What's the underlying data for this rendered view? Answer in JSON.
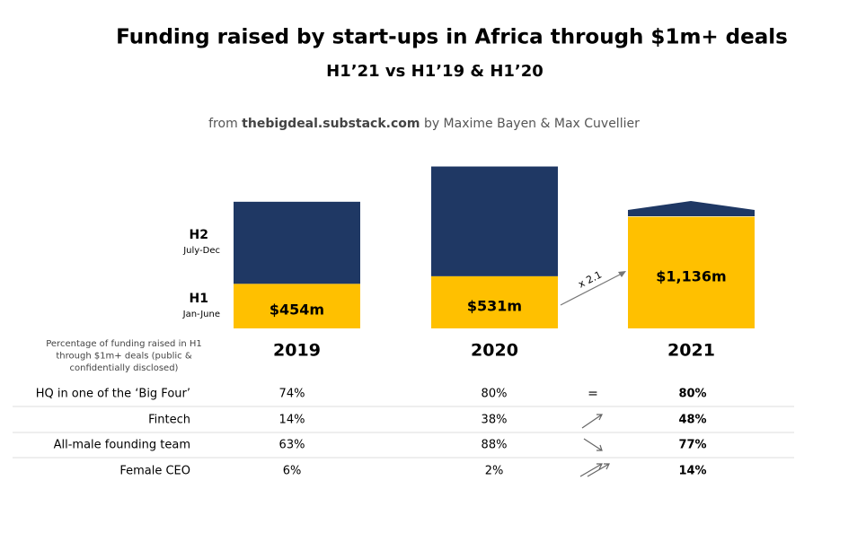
{
  "chart_data": {
    "type": "bar",
    "stacked": true,
    "title": "Funding raised by start-ups in Africa through $1m+ deals",
    "subtitle": "H1’21 vs H1’19 & H1’20",
    "source_prefix": "from",
    "source_site": "thebigdeal.substack.com",
    "source_suffix": "by Maxime Bayen & Max Cuvellier",
    "categories": [
      "2019",
      "2020",
      "2021"
    ],
    "series": [
      {
        "name": "H1",
        "sublabel": "Jan-June",
        "color": "#ffc000",
        "values": [
          454,
          531,
          1136
        ],
        "value_labels": [
          "$454m",
          "$531m",
          "$1,136m"
        ]
      },
      {
        "name": "H2",
        "sublabel": "July-Dec",
        "color": "#1f3864",
        "values": [
          835,
          1117,
          null
        ]
      }
    ],
    "growth_label": "x 2.1"
  },
  "table": {
    "caption_lines": [
      "Percentage of funding raised in H1",
      "through $1m+ deals (public &",
      "confidentially disclosed)"
    ],
    "rows": [
      {
        "cells": [
          "HQ in one of the ‘Big Four’",
          "74%",
          "80%",
          "80%"
        ],
        "trend": "="
      },
      {
        "cells": [
          "Fintech",
          "14%",
          "38%",
          "48%"
        ]
      },
      {
        "cells": [
          "All-male founding team",
          "63%",
          "88%",
          "77%"
        ]
      },
      {
        "cells": [
          "Female CEO",
          "6%",
          "2%",
          "14%"
        ]
      }
    ]
  }
}
